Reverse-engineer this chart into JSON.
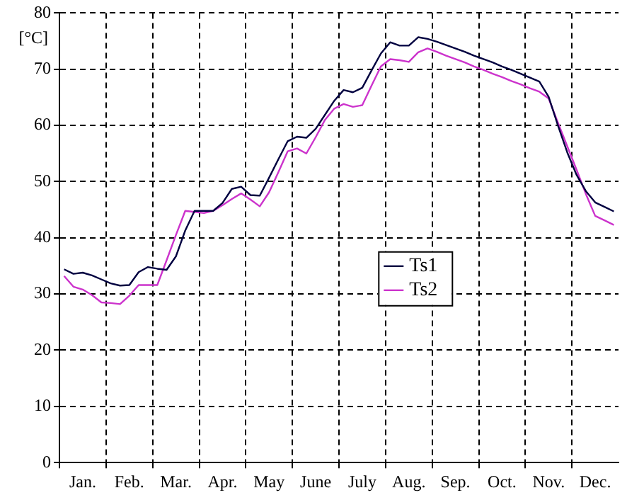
{
  "chart_data": {
    "type": "line",
    "ylabel": "[°C]",
    "ylim": [
      0,
      80
    ],
    "yticks": [
      0,
      10,
      20,
      30,
      40,
      50,
      60,
      70,
      80
    ],
    "categories": [
      null,
      null,
      "Jan.",
      null,
      null,
      null,
      null,
      "Feb.",
      null,
      null,
      null,
      null,
      "Mar.",
      null,
      null,
      null,
      null,
      "Apr.",
      null,
      null,
      null,
      null,
      "May",
      null,
      null,
      null,
      null,
      "June",
      null,
      null,
      null,
      null,
      "July",
      null,
      null,
      null,
      null,
      "Aug.",
      null,
      null,
      null,
      null,
      "Sep.",
      null,
      null,
      null,
      null,
      "Oct.",
      null,
      null,
      null,
      null,
      "Nov.",
      null,
      null,
      null,
      null,
      "Dec.",
      null,
      null
    ],
    "grid": true,
    "legend": "center",
    "line_style": "solid",
    "series": [
      {
        "name": "Ts1",
        "color": "#000040",
        "values": [
          34.4,
          33.6,
          33.8,
          33.3,
          32.6,
          31.9,
          31.5,
          31.6,
          33.9,
          34.8,
          34.5,
          34.3,
          36.7,
          41.3,
          44.8,
          44.8,
          44.8,
          46.2,
          48.7,
          49.1,
          47.6,
          47.5,
          50.7,
          54.0,
          57.2,
          58.0,
          57.8,
          59.4,
          61.9,
          64.4,
          66.3,
          65.9,
          66.7,
          69.8,
          72.8,
          74.8,
          74.2,
          74.2,
          75.7,
          75.4,
          74.9,
          74.3,
          73.7,
          73.1,
          72.4,
          71.8,
          71.2,
          70.5,
          69.9,
          69.2,
          68.5,
          67.8,
          65.1,
          60.0,
          55.2,
          51.2,
          48.3,
          46.3,
          45.5,
          44.7
        ]
      },
      {
        "name": "Ts2",
        "color": "#cc33cc",
        "values": [
          33.2,
          31.3,
          30.8,
          29.8,
          28.5,
          28.4,
          28.2,
          29.7,
          31.6,
          31.6,
          31.6,
          36.0,
          40.5,
          44.8,
          44.6,
          44.4,
          44.8,
          45.8,
          46.9,
          47.9,
          46.8,
          45.6,
          48.1,
          51.7,
          55.4,
          55.9,
          55.0,
          57.9,
          61.0,
          63.0,
          63.8,
          63.3,
          63.6,
          67.1,
          70.5,
          71.8,
          71.6,
          71.3,
          73.0,
          73.7,
          73.1,
          72.4,
          71.8,
          71.2,
          70.5,
          69.9,
          69.2,
          68.6,
          67.9,
          67.3,
          66.6,
          66.0,
          64.8,
          60.5,
          56.3,
          52.1,
          47.8,
          43.9,
          43.1,
          42.3
        ]
      }
    ]
  }
}
